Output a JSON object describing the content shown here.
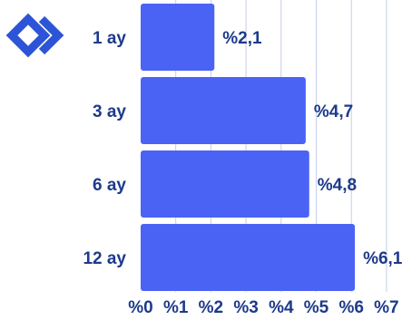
{
  "brand": {
    "logo_icon": "double-chevron-logo-icon",
    "color": "#2d54d6"
  },
  "chart_data": {
    "type": "bar",
    "orientation": "horizontal",
    "categories": [
      "1 ay",
      "3 ay",
      "6 ay",
      "12 ay"
    ],
    "values": [
      2.1,
      4.7,
      4.8,
      6.1
    ],
    "value_labels": [
      "%2,1",
      "%4,7",
      "%4,8",
      "%6,1"
    ],
    "xlim": [
      0,
      7
    ],
    "x_ticks": [
      0,
      1,
      2,
      3,
      4,
      5,
      6,
      7
    ],
    "x_tick_labels": [
      "%0",
      "%1",
      "%2",
      "%3",
      "%4",
      "%5",
      "%6",
      "%7"
    ],
    "grid": "vertical",
    "bar_color": "#4a63f5",
    "text_color": "#1d3a8a",
    "grid_color": "#c5cde8"
  }
}
